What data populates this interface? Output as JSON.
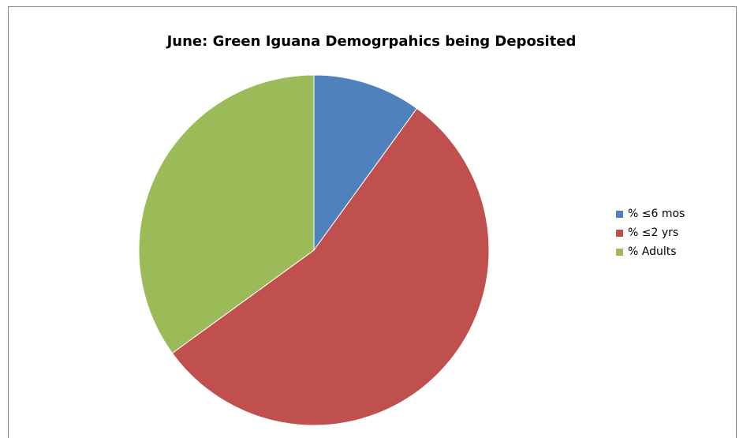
{
  "chart_data": {
    "type": "pie",
    "title": "June: Green Iguana Demogrpahics being Deposited",
    "categories": [
      "% ≤6 mos",
      "% ≤2 yrs",
      "% Adults"
    ],
    "values": [
      10,
      55,
      35
    ],
    "colors": [
      "#4F81BD",
      "#C0504D",
      "#9BBB59"
    ],
    "legend_position": "right"
  }
}
